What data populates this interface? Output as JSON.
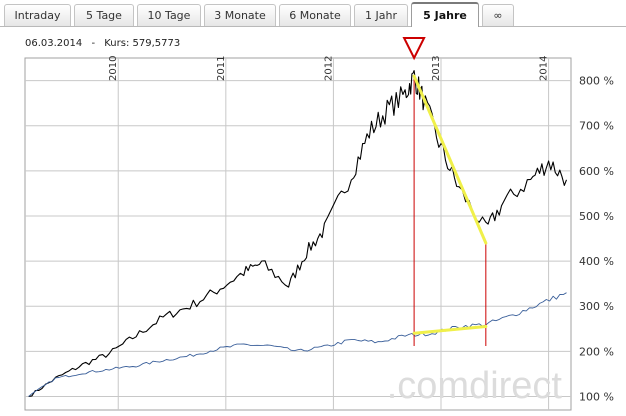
{
  "tabs": [
    {
      "label": "Intraday",
      "active": false
    },
    {
      "label": "5 Tage",
      "active": false
    },
    {
      "label": "10 Tage",
      "active": false
    },
    {
      "label": "3 Monate",
      "active": false
    },
    {
      "label": "6 Monate",
      "active": false
    },
    {
      "label": "1 Jahr",
      "active": false
    },
    {
      "label": "5 Jahre",
      "active": true
    },
    {
      "label": "∞",
      "active": false
    }
  ],
  "info": {
    "date": "06.03.2014",
    "separator": "-",
    "kurs_label": "Kurs:",
    "kurs_value": "579,5773"
  },
  "watermark": ".comdirect",
  "chart_data": {
    "type": "line",
    "x_tick_labels": [
      "2010",
      "2011",
      "2012",
      "2013",
      "2014"
    ],
    "y_tick_labels": [
      "100 %",
      "200 %",
      "300 %",
      "400 %",
      "500 %",
      "600 %",
      "700 %",
      "800 %"
    ],
    "ylim": [
      70,
      850
    ],
    "grid": true,
    "series": [
      {
        "color": "#000000",
        "points": [
          [
            "2009-03",
            100
          ],
          [
            "2009-06",
            140
          ],
          [
            "2009-09",
            170
          ],
          [
            "2009-12",
            195
          ],
          [
            "2010-03",
            235
          ],
          [
            "2010-06",
            275
          ],
          [
            "2010-09",
            300
          ],
          [
            "2010-12",
            335
          ],
          [
            "2011-03",
            375
          ],
          [
            "2011-05",
            395
          ],
          [
            "2011-08",
            345
          ],
          [
            "2011-10",
            420
          ],
          [
            "2011-12",
            470
          ],
          [
            "2012-03",
            590
          ],
          [
            "2012-05",
            685
          ],
          [
            "2012-07",
            735
          ],
          [
            "2012-09",
            770
          ],
          [
            "2012-10",
            810
          ],
          [
            "2012-11",
            760
          ],
          [
            "2013-01",
            650
          ],
          [
            "2013-03",
            560
          ],
          [
            "2013-06",
            470
          ],
          [
            "2013-08",
            530
          ],
          [
            "2013-11",
            580
          ],
          [
            "2014-01",
            620
          ],
          [
            "2014-03",
            580
          ]
        ]
      },
      {
        "color": "#3a5f9a",
        "points": [
          [
            "2009-03",
            100
          ],
          [
            "2009-06",
            140
          ],
          [
            "2009-09",
            152
          ],
          [
            "2009-12",
            160
          ],
          [
            "2010-03",
            168
          ],
          [
            "2010-06",
            180
          ],
          [
            "2010-09",
            190
          ],
          [
            "2010-12",
            205
          ],
          [
            "2011-03",
            215
          ],
          [
            "2011-06",
            212
          ],
          [
            "2011-09",
            200
          ],
          [
            "2011-12",
            210
          ],
          [
            "2012-03",
            225
          ],
          [
            "2012-06",
            220
          ],
          [
            "2012-09",
            235
          ],
          [
            "2012-12",
            240
          ],
          [
            "2013-03",
            255
          ],
          [
            "2013-06",
            260
          ],
          [
            "2013-09",
            280
          ],
          [
            "2013-12",
            305
          ],
          [
            "2014-03",
            330
          ]
        ]
      }
    ],
    "annotations": {
      "marker_color": "#cc0000",
      "trend_color": "#f0f04a",
      "peak_date": "2012-10",
      "trough_date": "2013-06",
      "black_trend": [
        810,
        440
      ],
      "blue_trend": [
        240,
        255
      ]
    }
  }
}
